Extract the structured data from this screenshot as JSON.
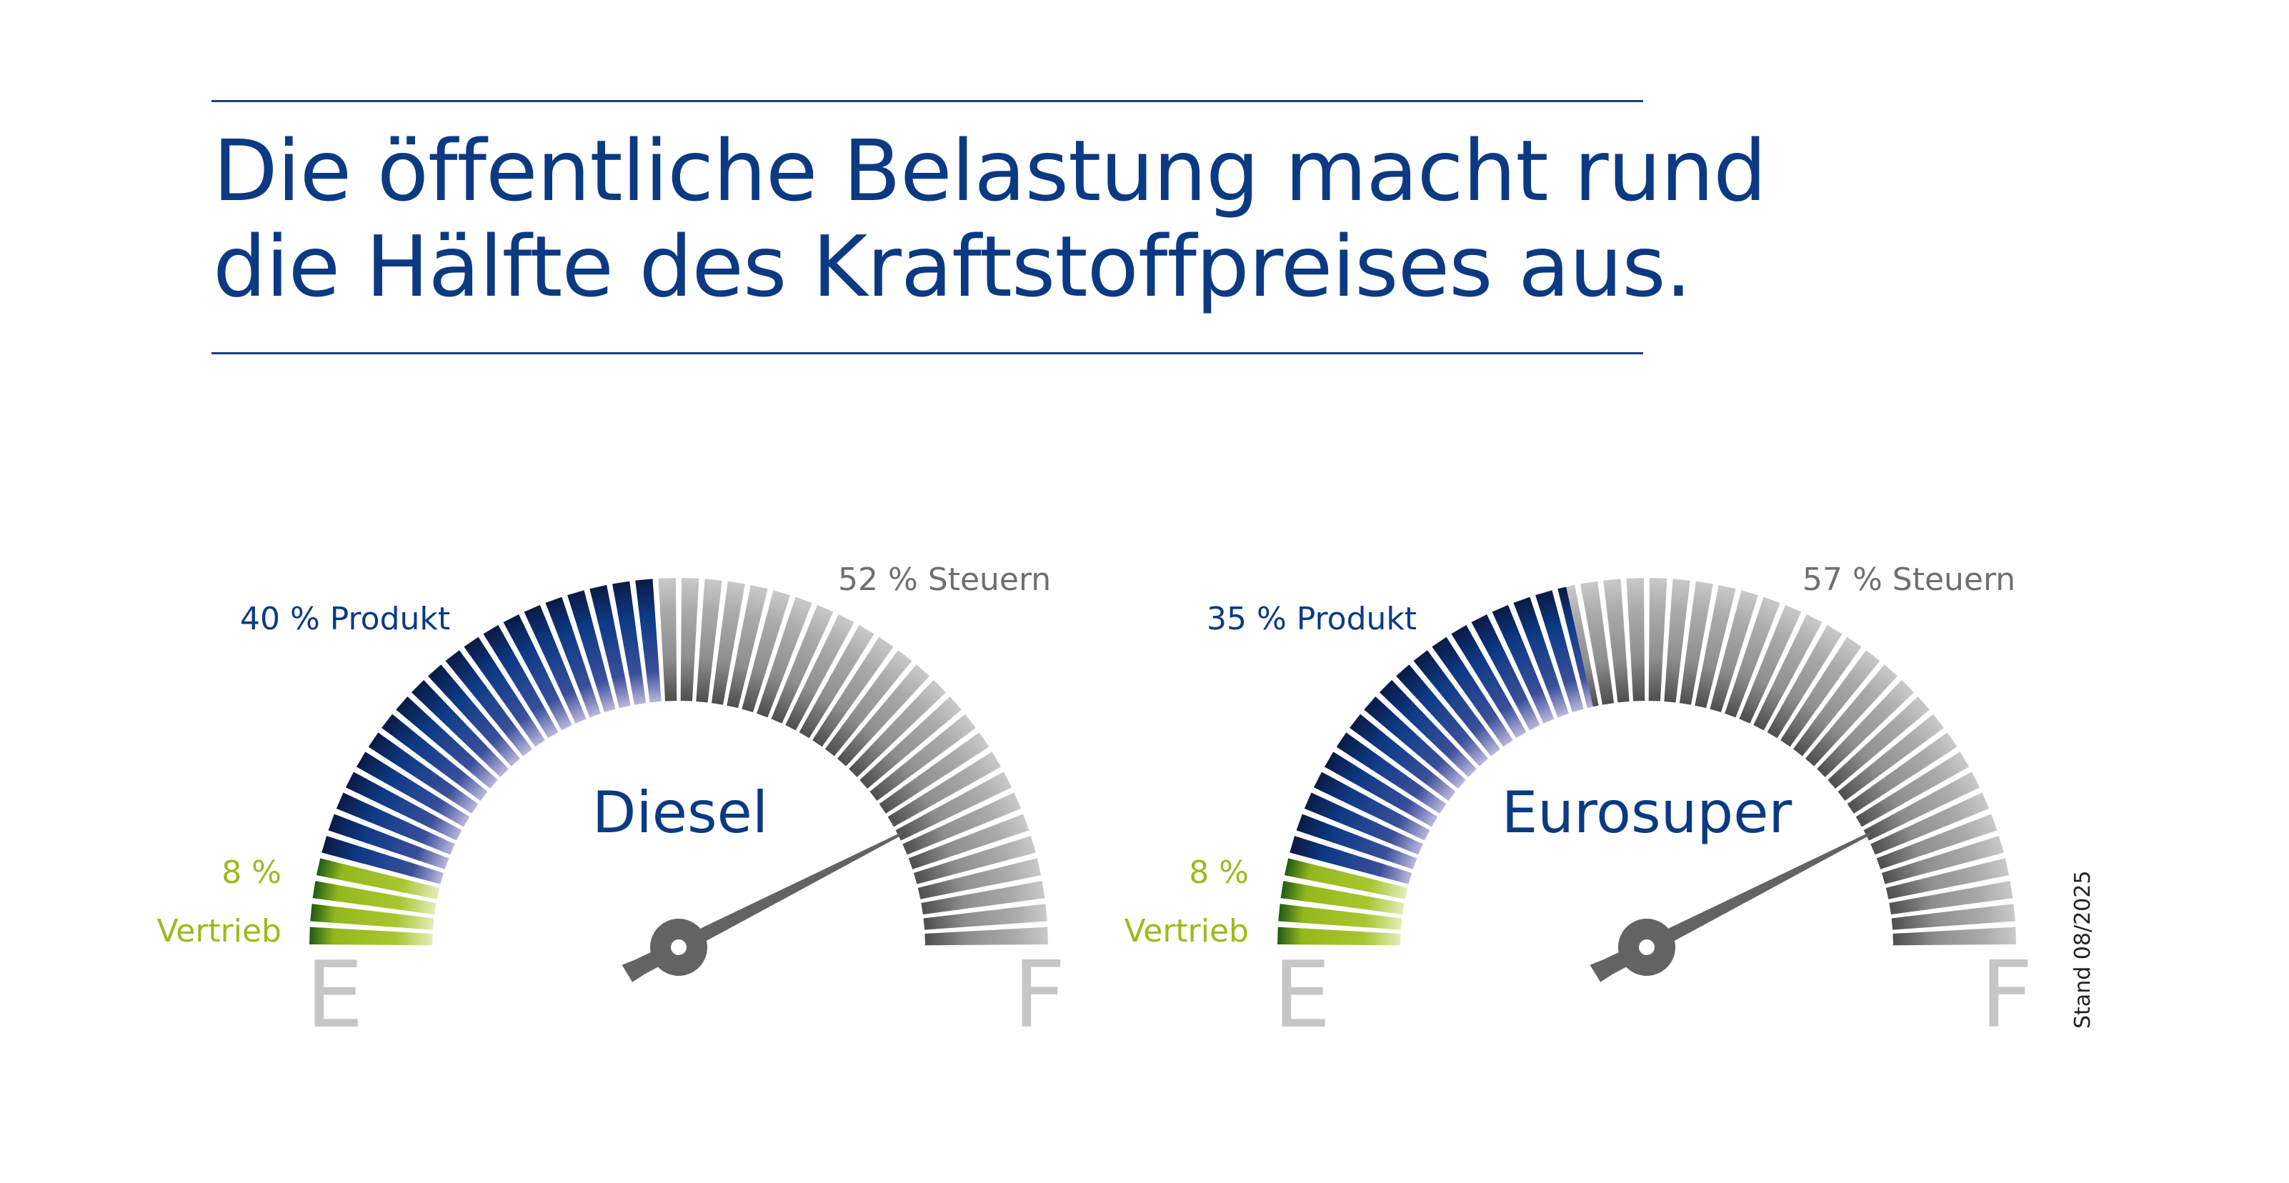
{
  "title": {
    "line1": "Die öffentliche Belastung macht rund",
    "line2": "die Hälfte des Kraftstoffpreises aus."
  },
  "footnote": "Stand 08/2025",
  "colors": {
    "title": "#0b3a83",
    "vertrieb": "#9bbb1c",
    "produkt": "#0b3a83",
    "steuern": "#8f8f8f",
    "needle": "#636363",
    "scale_letters": "#c8c6c4"
  },
  "chart_data": [
    {
      "type": "gauge",
      "title": "Diesel",
      "scale_start": "E",
      "scale_end": "F",
      "segments": [
        {
          "name": "Vertrieb",
          "value": 8,
          "label": "8 %"
        },
        {
          "name": "Produkt",
          "value": 40,
          "label": "40 % Produkt"
        },
        {
          "name": "Steuern",
          "value": 52,
          "label": "52 % Steuern"
        }
      ],
      "needle_position_percent": 85
    },
    {
      "type": "gauge",
      "title": "Eurosuper",
      "scale_start": "E",
      "scale_end": "F",
      "segments": [
        {
          "name": "Vertrieb",
          "value": 8,
          "label": "8 %"
        },
        {
          "name": "Produkt",
          "value": 35,
          "label": "35 % Produkt"
        },
        {
          "name": "Steuern",
          "value": 57,
          "label": "57 % Steuern"
        }
      ],
      "needle_position_percent": 85
    }
  ]
}
